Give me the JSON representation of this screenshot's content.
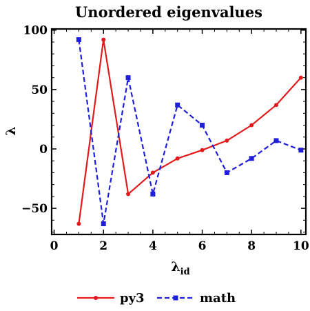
{
  "chart_data": {
    "type": "line",
    "title": "Unordered eigenvalues",
    "xlabel_main": "λ",
    "xlabel_sub": "id",
    "ylabel": "λ",
    "xlim": [
      -0.1,
      10.2
    ],
    "ylim": [
      -72,
      101
    ],
    "xticks": [
      0,
      2,
      4,
      6,
      8,
      10
    ],
    "yticks": [
      100,
      50,
      0,
      -50
    ],
    "ytick_labels": [
      "100",
      "50",
      "0",
      "−50"
    ],
    "grid": false,
    "legend_placement": "bottom-center",
    "series": [
      {
        "name": "py3",
        "color": "#e31a1c",
        "dash": "solid",
        "marker": "circle",
        "x": [
          1,
          2,
          3,
          4,
          5,
          6,
          7,
          8,
          9,
          10
        ],
        "values": [
          -63,
          92,
          -38,
          -20,
          -8,
          -1,
          7,
          20,
          37,
          60
        ]
      },
      {
        "name": "math",
        "color": "#1f1fdb",
        "dash": "dashed",
        "marker": "square",
        "x": [
          1,
          2,
          3,
          4,
          5,
          6,
          7,
          8,
          9,
          10
        ],
        "values": [
          92,
          -63,
          60,
          -38,
          37,
          20,
          -20,
          -8,
          7,
          -1
        ]
      }
    ]
  }
}
